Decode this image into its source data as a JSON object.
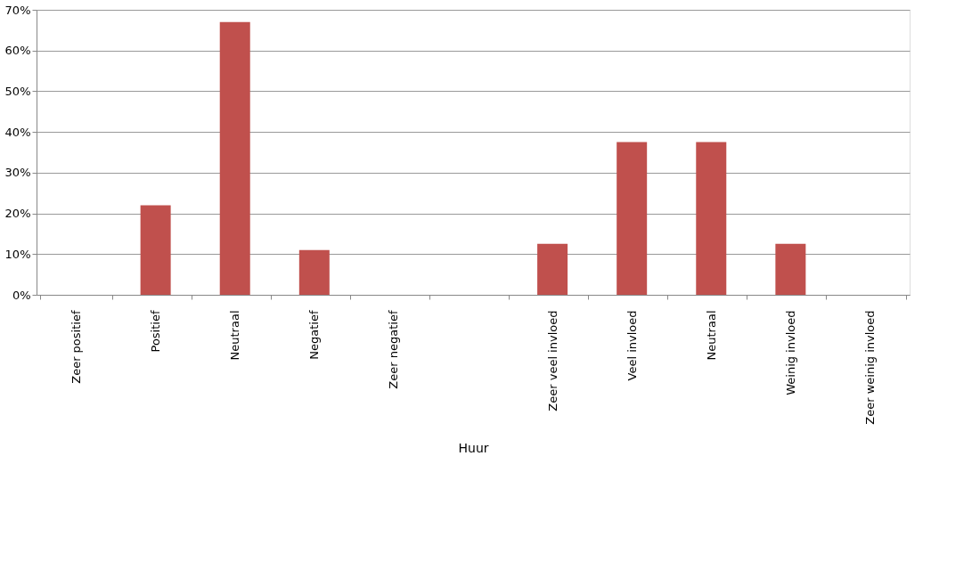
{
  "chart_data": {
    "type": "bar",
    "categories": [
      "Zeer positief",
      "Positief",
      "Neutraal",
      "Negatief",
      "Zeer negatief",
      null,
      "Zeer veel invloed",
      "Veel invloed",
      "Neutraal",
      "Weinig invloed",
      "Zeer weinig invloed"
    ],
    "values": [
      0,
      22,
      67,
      11,
      0,
      null,
      12.5,
      37.5,
      37.5,
      12.5,
      0
    ],
    "color": "#c0504d",
    "xlabel": "Huur",
    "ylim": [
      0,
      70
    ],
    "yticks": [
      {
        "value": 0,
        "label": "0%"
      },
      {
        "value": 10,
        "label": "10%"
      },
      {
        "value": 20,
        "label": "20%"
      },
      {
        "value": 30,
        "label": "30%"
      },
      {
        "value": 40,
        "label": "40%"
      },
      {
        "value": 50,
        "label": "50%"
      },
      {
        "value": 60,
        "label": "60%"
      },
      {
        "value": 70,
        "label": "70%"
      }
    ],
    "grid": "y"
  }
}
